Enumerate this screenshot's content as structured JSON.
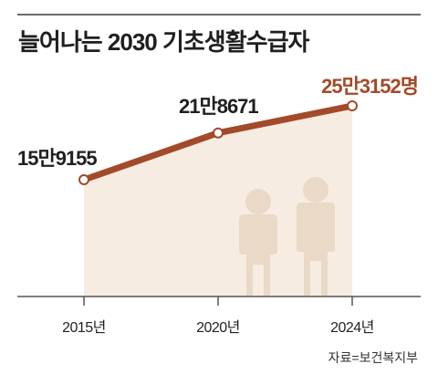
{
  "title": "늘어나는 2030 기초생활수급자",
  "source": "자료=보건복지부",
  "chart_data": {
    "type": "line",
    "categories": [
      "2015년",
      "2020년",
      "2024년"
    ],
    "series": [
      {
        "values": [
          159155,
          218671,
          253152
        ]
      }
    ],
    "data_labels": [
      "15만9155",
      "21만8671",
      "25만3152명"
    ],
    "ylim": [
      0,
      260000
    ],
    "grid": false,
    "colors": {
      "line": "#a24a2a",
      "highlight_label": "#a24a2a",
      "area_fill": "#f7ece1",
      "figures": "#ead9c7",
      "axis": "#555555"
    }
  }
}
